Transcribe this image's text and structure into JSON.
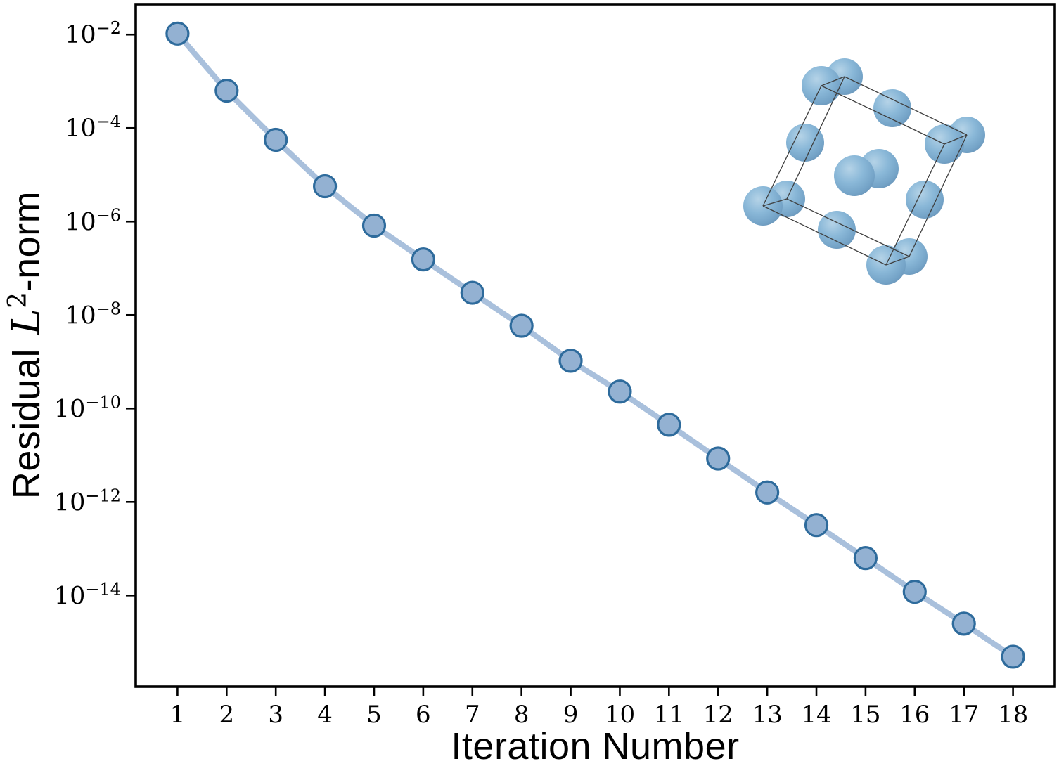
{
  "labels": {
    "xlabel": "Iteration Number",
    "ylabel_prefix": "Residual ",
    "ylabel_math": "L",
    "ylabel_sup": "2",
    "ylabel_suffix": "-norm"
  },
  "chart_data": {
    "type": "line",
    "title": "",
    "xlabel": "Iteration Number",
    "ylabel": "Residual L^2-norm",
    "yscale": "log",
    "grid": false,
    "legend": null,
    "x": [
      1,
      2,
      3,
      4,
      5,
      6,
      7,
      8,
      9,
      10,
      11,
      12,
      13,
      14,
      15,
      16,
      17,
      18
    ],
    "y": [
      0.0105,
      0.00063,
      5.6e-05,
      5.7e-06,
      8.2e-07,
      1.55e-07,
      3e-08,
      5.9e-09,
      1.05e-09,
      2.3e-10,
      4.5e-11,
      8.5e-12,
      1.6e-12,
      3.2e-13,
      6.3e-14,
      1.2e-14,
      2.5e-15,
      4.9e-16
    ],
    "xticks": [
      1,
      2,
      3,
      4,
      5,
      6,
      7,
      8,
      9,
      10,
      11,
      12,
      13,
      14,
      15,
      16,
      17,
      18
    ],
    "ytick_exponents": [
      -2,
      -4,
      -6,
      -8,
      -10,
      -12,
      -14
    ],
    "xlim": [
      0.15,
      18.85
    ],
    "ylim_log10": [
      -15.95,
      -1.35
    ],
    "colors": {
      "line": "#a9c0dc",
      "marker_face": "#93b1d2",
      "marker_edge": "#2e6b9c",
      "axis": "#000000"
    },
    "marker": "circle"
  },
  "inset": {
    "name": "fcc-crystal-structure",
    "bond_color": "#3f3f3f",
    "atom_gradient": [
      "#b5d3e7",
      "#8ab8d8",
      "#74a3c7",
      "#6690b4"
    ],
    "atoms": [
      [
        1201,
        109,
        26
      ],
      [
        1375,
        192,
        26
      ],
      [
        1293,
        365,
        26
      ],
      [
        1119,
        283,
        26
      ],
      [
        1250,
        240,
        28
      ],
      [
        1269,
        154,
        27
      ],
      [
        1145,
        203,
        27
      ],
      [
        1315,
        284,
        27
      ],
      [
        1190,
        327,
        27
      ],
      [
        1215,
        250,
        29
      ],
      [
        1168,
        122,
        28
      ],
      [
        1343,
        205,
        28
      ],
      [
        1260,
        377,
        28
      ],
      [
        1085,
        293,
        28
      ]
    ],
    "bonds": [
      [
        0,
        1
      ],
      [
        1,
        2
      ],
      [
        2,
        3
      ],
      [
        3,
        0
      ],
      [
        10,
        11
      ],
      [
        11,
        12
      ],
      [
        12,
        13
      ],
      [
        13,
        10
      ],
      [
        0,
        10
      ],
      [
        1,
        11
      ],
      [
        2,
        12
      ],
      [
        3,
        13
      ]
    ]
  }
}
